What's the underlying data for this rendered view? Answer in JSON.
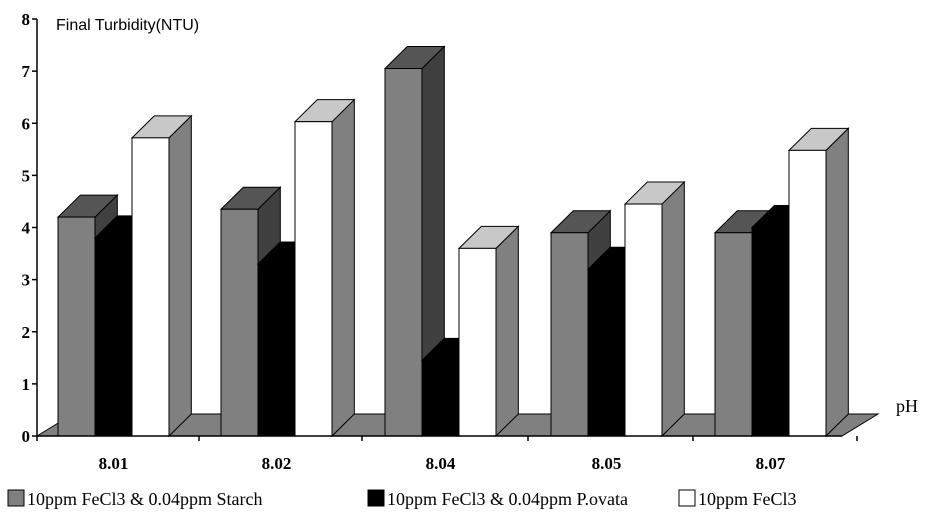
{
  "chart_data": {
    "type": "bar",
    "ylabel": "Final Turbidity(NTU)",
    "xlabel": "pH",
    "ylim": [
      0,
      8
    ],
    "yticks": [
      "0",
      "1",
      "2",
      "3",
      "4",
      "5",
      "6",
      "7",
      "8"
    ],
    "categories": [
      "8.01",
      "8.02",
      "8.04",
      "8.05",
      "8.07"
    ],
    "series": [
      {
        "name": "10ppm FeCl3 & 0.04ppm Starch",
        "values": [
          4.2,
          4.35,
          7.05,
          3.9,
          3.9
        ],
        "color": "#808080",
        "top_color": "#555555",
        "side_color": "#404040"
      },
      {
        "name": "10ppm FeCl3 & 0.04ppm P.ovata",
        "values": [
          3.8,
          3.3,
          1.45,
          3.2,
          4.0
        ],
        "color": "#000000",
        "top_color": "#000000",
        "side_color": "#000000"
      },
      {
        "name": "10ppm FeCl3",
        "values": [
          5.72,
          6.03,
          3.6,
          4.45,
          5.48
        ],
        "color": "#ffffff",
        "top_color": "#c8c8c8",
        "side_color": "#808080"
      }
    ],
    "legend_position": "bottom",
    "grid": false
  }
}
